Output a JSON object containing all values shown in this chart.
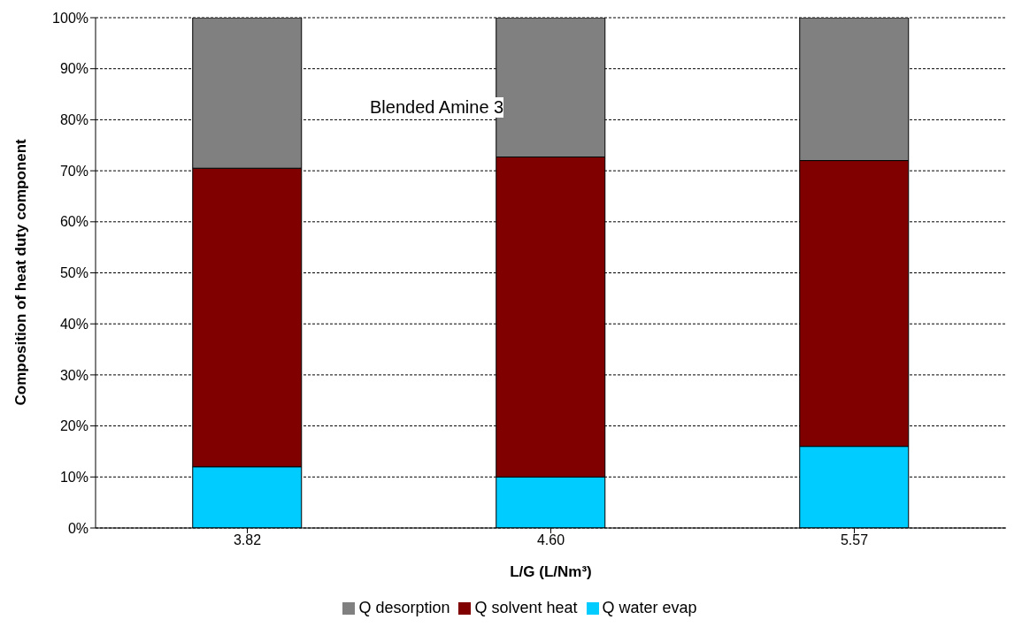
{
  "chart_data": {
    "type": "bar",
    "stacked": true,
    "categories": [
      "3.82",
      "4.60",
      "5.57"
    ],
    "series": [
      {
        "name": "Q water evap",
        "color": "#00ccff",
        "values": [
          12,
          10,
          16
        ]
      },
      {
        "name": "Q solvent heat",
        "color": "#800000",
        "values": [
          58.5,
          62.7,
          56
        ]
      },
      {
        "name": "Q desorption",
        "color": "#808080",
        "values": [
          29.5,
          27.3,
          28
        ]
      }
    ],
    "xlabel": "L/G (L/Nm³)",
    "ylabel": "Composition of heat duty component",
    "ylim": [
      0,
      100
    ],
    "yticks": [
      {
        "value": 0,
        "label": "0%"
      },
      {
        "value": 10,
        "label": "10%"
      },
      {
        "value": 20,
        "label": "20%"
      },
      {
        "value": 30,
        "label": "30%"
      },
      {
        "value": 40,
        "label": "40%"
      },
      {
        "value": 50,
        "label": "50%"
      },
      {
        "value": 60,
        "label": "60%"
      },
      {
        "value": 70,
        "label": "70%"
      },
      {
        "value": 80,
        "label": "80%"
      },
      {
        "value": 90,
        "label": "90%"
      },
      {
        "value": 100,
        "label": "100%"
      }
    ],
    "grid": "y",
    "legend": "bottom",
    "annotations": [
      "Blended Amine 3"
    ]
  }
}
